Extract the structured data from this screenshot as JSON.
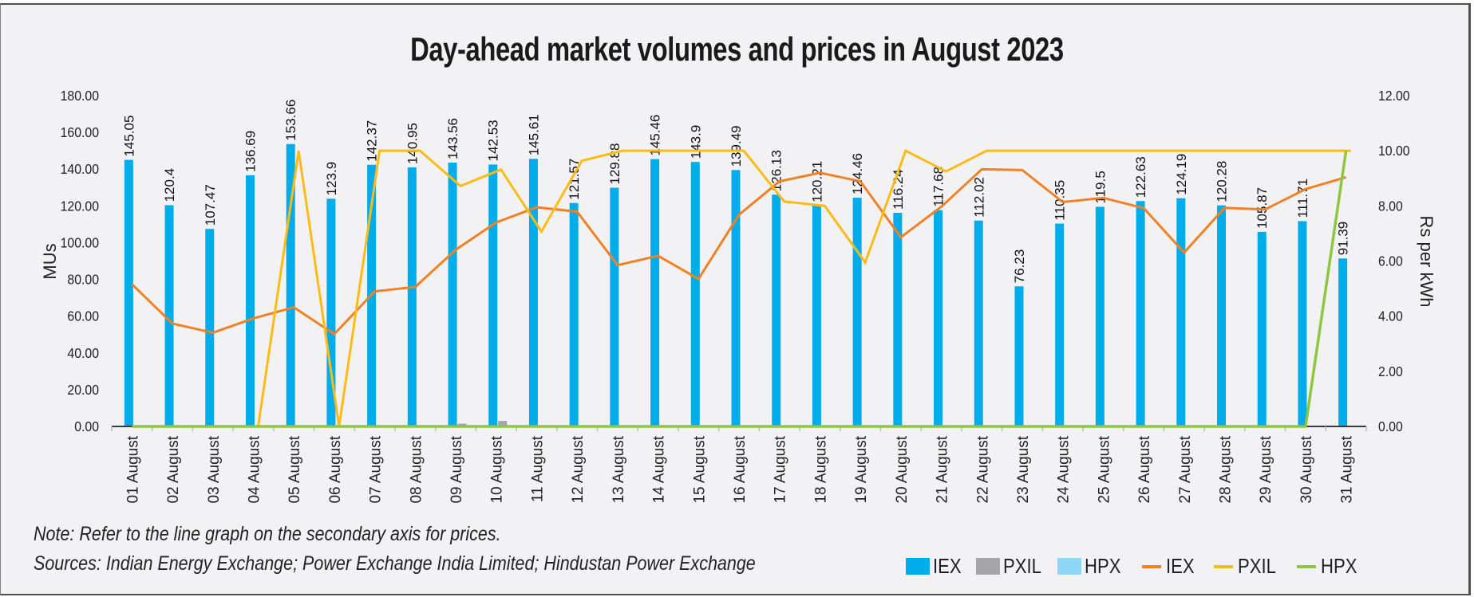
{
  "chart_data": {
    "type": "bar",
    "title": "Day-ahead market volumes and prices in August 2023",
    "xlabel": "",
    "ylabel": "MUs",
    "y2label": "Rs per kWh",
    "ylim": [
      0,
      180
    ],
    "y2lim": [
      0,
      12
    ],
    "yticks": [
      "0.00",
      "20.00",
      "40.00",
      "60.00",
      "80.00",
      "100.00",
      "120.00",
      "140.00",
      "160.00",
      "180.00"
    ],
    "y2ticks": [
      "0.00",
      "2.00",
      "4.00",
      "6.00",
      "8.00",
      "10.00",
      "12.00"
    ],
    "grid": false,
    "legend_position": "bottom-right",
    "categories": [
      "01 August",
      "02 August",
      "03 August",
      "04 August",
      "05 August",
      "06 August",
      "07 August",
      "08 August",
      "09 August",
      "10 August",
      "11 August",
      "12 August",
      "13 August",
      "14 August",
      "15 August",
      "16 August",
      "17 August",
      "18 August",
      "19 August",
      "20 August",
      "21 August",
      "22 August",
      "23 August",
      "24 August",
      "25 August",
      "26 August",
      "27 August",
      "28 August",
      "29 August",
      "30 August",
      "31 August"
    ],
    "bar_series": [
      {
        "name": "IEX",
        "color": "#00adea",
        "axis": "primary",
        "show_labels": true,
        "values": [
          145.05,
          120.4,
          107.47,
          136.69,
          153.66,
          123.9,
          142.37,
          140.95,
          143.56,
          142.53,
          145.61,
          121.57,
          129.88,
          145.46,
          143.9,
          139.49,
          126.13,
          120.21,
          124.46,
          116.24,
          117.68,
          112.02,
          76.23,
          110.35,
          119.5,
          122.63,
          124.19,
          120.28,
          105.87,
          111.71,
          91.39
        ]
      },
      {
        "name": "PXIL",
        "color": "#a6a6a8",
        "axis": "primary",
        "show_labels": false,
        "values": [
          0,
          0,
          0,
          0,
          0,
          0,
          0,
          0,
          1.5,
          3.0,
          0,
          0,
          0,
          0,
          0,
          0,
          0,
          0,
          0,
          0,
          0,
          0,
          0,
          0,
          0,
          0,
          0,
          0,
          0,
          0,
          0
        ]
      },
      {
        "name": "HPX",
        "color": "#8fd6f7",
        "axis": "primary",
        "show_labels": false,
        "values": [
          0,
          0,
          0,
          0,
          0,
          0,
          0,
          0,
          0,
          0,
          0,
          0,
          0,
          0,
          0,
          0,
          0,
          0,
          0,
          0,
          0,
          0,
          0,
          0,
          0,
          0,
          0,
          0,
          0,
          0,
          0
        ]
      }
    ],
    "line_series": [
      {
        "name": "IEX",
        "color": "#f08125",
        "axis": "secondary",
        "values": [
          5.16,
          3.73,
          3.4,
          3.92,
          4.32,
          3.35,
          4.9,
          5.06,
          6.41,
          7.4,
          7.95,
          7.79,
          5.85,
          6.19,
          5.35,
          7.68,
          8.89,
          9.2,
          8.89,
          6.86,
          7.97,
          9.33,
          9.3,
          8.14,
          8.29,
          7.92,
          6.31,
          7.93,
          7.87,
          8.61,
          9.04
        ]
      },
      {
        "name": "PXIL",
        "color": "#fdbb17",
        "axis": "secondary",
        "values": [
          0,
          0,
          0,
          0,
          10.0,
          0,
          10.0,
          10.0,
          8.72,
          9.32,
          7.07,
          9.64,
          10.0,
          10.0,
          10.0,
          10.0,
          8.16,
          8.0,
          5.95,
          10.0,
          9.25,
          10.0,
          10.0,
          10.0,
          10.0,
          10.0,
          10.0,
          10.0,
          10.0,
          10.0,
          10.0
        ]
      },
      {
        "name": "HPX",
        "color": "#8dc63f",
        "axis": "secondary",
        "values": [
          0,
          0,
          0,
          0,
          0,
          0,
          0,
          0,
          0,
          0,
          0,
          0,
          0,
          0,
          0,
          0,
          0,
          0,
          0,
          0,
          0,
          0,
          0,
          0,
          0,
          0,
          0,
          0,
          0,
          0,
          10.0
        ]
      }
    ]
  },
  "notes": {
    "note": "Note: Refer to the line graph on the secondary axis for prices.",
    "sources": "Sources: Indian Energy Exchange; Power Exchange India Limited; Hindustan Power Exchange"
  },
  "legend": [
    {
      "label": "IEX",
      "kind": "bar",
      "color": "#00adea"
    },
    {
      "label": "PXIL",
      "kind": "bar",
      "color": "#a6a6a8"
    },
    {
      "label": "HPX",
      "kind": "bar",
      "color": "#8fd6f7"
    },
    {
      "label": "IEX",
      "kind": "line",
      "color": "#f08125"
    },
    {
      "label": "PXIL",
      "kind": "line",
      "color": "#fdbb17"
    },
    {
      "label": "HPX",
      "kind": "line",
      "color": "#8dc63f"
    }
  ]
}
